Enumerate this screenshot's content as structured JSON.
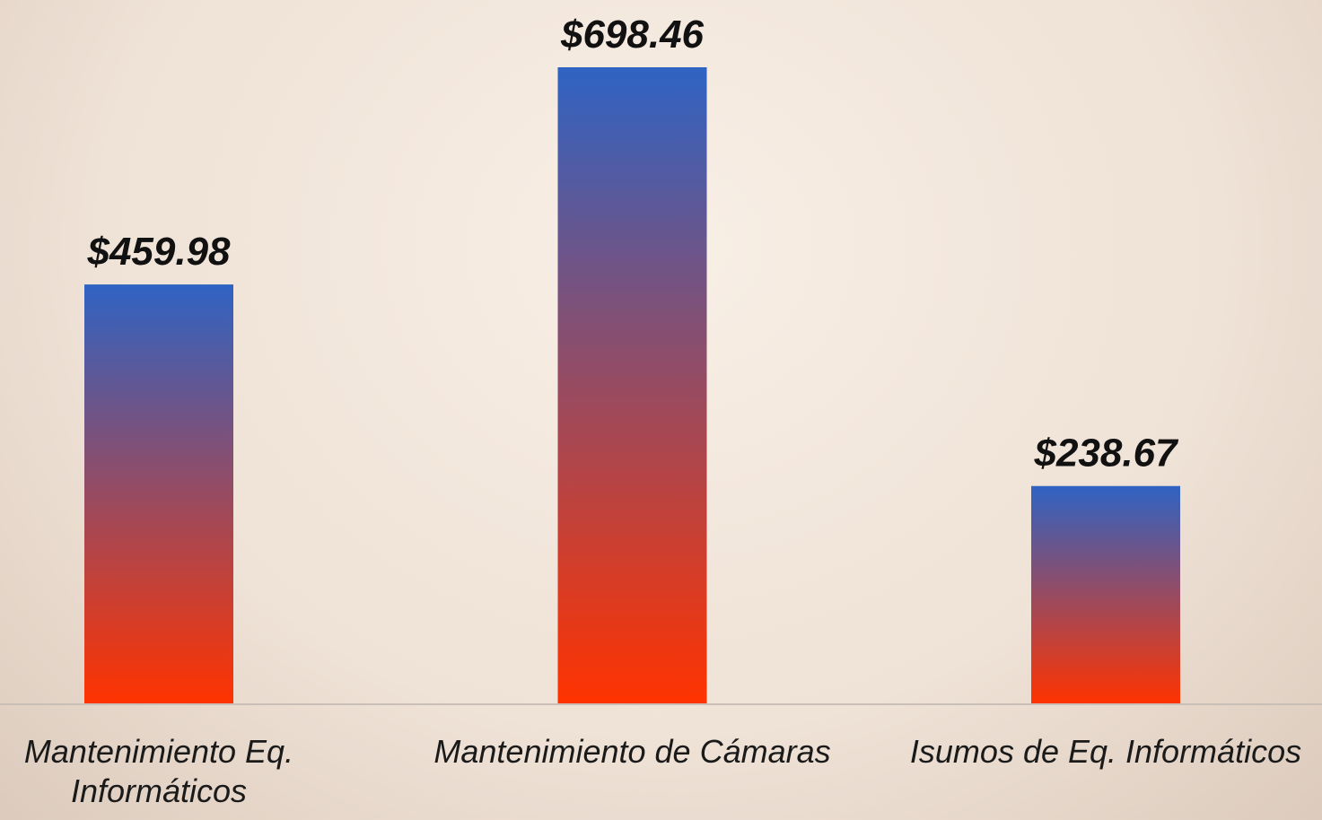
{
  "chart_data": {
    "type": "bar",
    "categories": [
      "Mantenimiento Eq. Informáticos",
      "Mantenimiento de Cámaras",
      "Isumos de Eq. Informáticos"
    ],
    "values": [
      459.98,
      698.46,
      238.67
    ],
    "value_labels": [
      "$459.98",
      "$698.46",
      "$238.67"
    ],
    "gradient": [
      "#2f63c3",
      "#ff3300"
    ]
  }
}
